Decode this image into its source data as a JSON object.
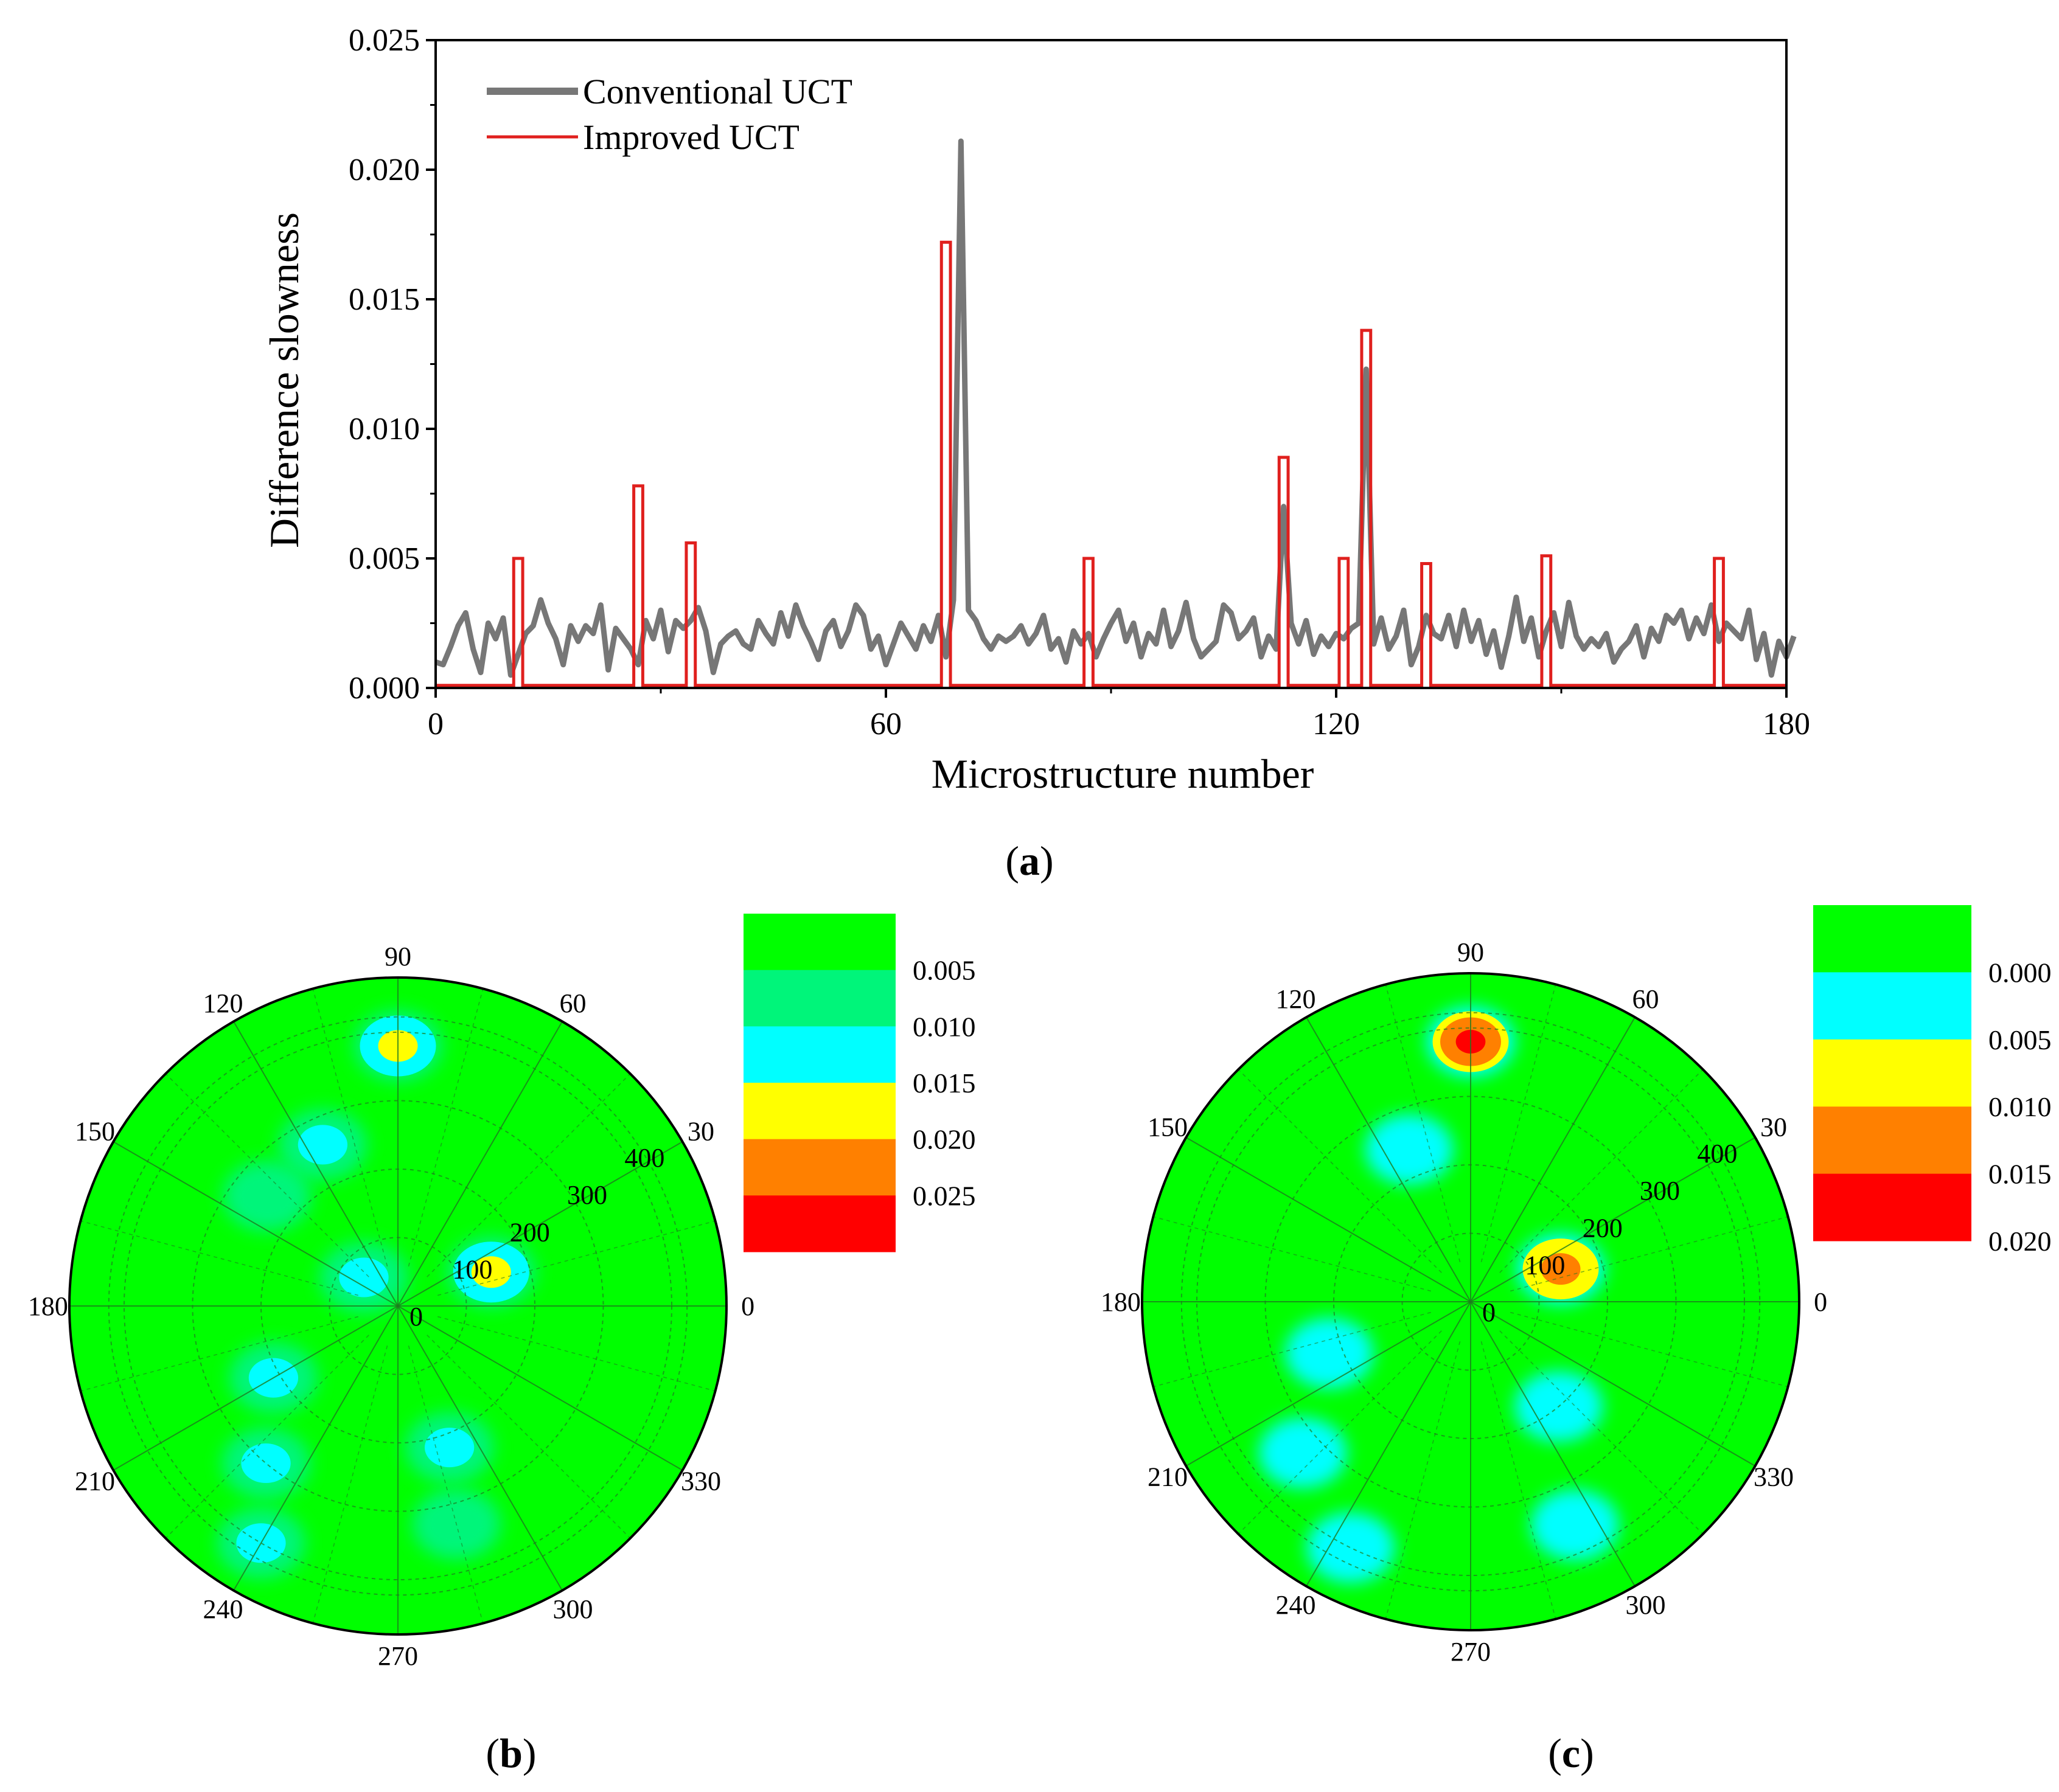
{
  "chart_data": [
    {
      "type": "line",
      "panel_label_open": "(",
      "panel_label": "a",
      "panel_label_close": ")",
      "xlabel": "Microstructure number",
      "ylabel": "Difference slowness",
      "xlim": [
        0,
        180
      ],
      "ylim": [
        0,
        0.025
      ],
      "xticks": [
        "0",
        "60",
        "120",
        "180"
      ],
      "yticks": [
        "0.000",
        "0.005",
        "0.010",
        "0.015",
        "0.020",
        "0.025"
      ],
      "legend_position": "top-left",
      "series": [
        {
          "name": "Conventional UCT",
          "color": "#777777",
          "values": [
            0.001,
            0.0009,
            0.0016,
            0.0024,
            0.0029,
            0.0015,
            0.0006,
            0.0025,
            0.0019,
            0.0027,
            0.0005,
            0.0013,
            0.0021,
            0.0024,
            0.0034,
            0.0025,
            0.0019,
            0.0009,
            0.0024,
            0.0018,
            0.0024,
            0.0021,
            0.0032,
            0.0007,
            0.0023,
            0.0019,
            0.0015,
            0.0009,
            0.0026,
            0.0019,
            0.003,
            0.0014,
            0.0026,
            0.0023,
            0.0026,
            0.0031,
            0.0022,
            0.0006,
            0.0017,
            0.002,
            0.0022,
            0.0017,
            0.0015,
            0.0026,
            0.0021,
            0.0017,
            0.0029,
            0.002,
            0.0032,
            0.0024,
            0.0018,
            0.0011,
            0.0022,
            0.0026,
            0.0016,
            0.0022,
            0.0032,
            0.0028,
            0.0015,
            0.002,
            0.0009,
            0.0017,
            0.0025,
            0.002,
            0.0015,
            0.0024,
            0.0018,
            0.0028,
            0.0012,
            0.0034,
            0.0211,
            0.003,
            0.0026,
            0.0019,
            0.0015,
            0.002,
            0.0018,
            0.002,
            0.0024,
            0.0017,
            0.0021,
            0.0028,
            0.0015,
            0.0019,
            0.001,
            0.0022,
            0.0017,
            0.0021,
            0.0012,
            0.0019,
            0.0025,
            0.003,
            0.0018,
            0.0025,
            0.0012,
            0.0021,
            0.0017,
            0.003,
            0.0016,
            0.0022,
            0.0033,
            0.0019,
            0.0012,
            0.0015,
            0.0018,
            0.0032,
            0.0029,
            0.0019,
            0.0022,
            0.0027,
            0.0012,
            0.002,
            0.0015,
            0.007,
            0.0025,
            0.0017,
            0.0026,
            0.0013,
            0.002,
            0.0016,
            0.0021,
            0.0019,
            0.0023,
            0.0025,
            0.0123,
            0.0017,
            0.0027,
            0.0015,
            0.002,
            0.003,
            0.0009,
            0.0016,
            0.0028,
            0.0021,
            0.0019,
            0.0028,
            0.0016,
            0.003,
            0.0018,
            0.0026,
            0.0013,
            0.0022,
            0.0008,
            0.002,
            0.0035,
            0.0018,
            0.0027,
            0.0012,
            0.0022,
            0.0029,
            0.0016,
            0.0033,
            0.002,
            0.0015,
            0.0019,
            0.0016,
            0.0021,
            0.001,
            0.0015,
            0.0018,
            0.0024,
            0.0012,
            0.0023,
            0.0018,
            0.0028,
            0.0025,
            0.003,
            0.0019,
            0.0027,
            0.0021,
            0.0032,
            0.0018,
            0.0025,
            0.0022,
            0.0019,
            0.003,
            0.0011,
            0.0021,
            0.0005,
            0.0018,
            0.0012,
            0.002
          ]
        },
        {
          "name": "Improved UCT",
          "color": "#e0201e",
          "baseline": 0.0001,
          "peaks": [
            {
              "x": 11,
              "y": 0.005
            },
            {
              "x": 27,
              "y": 0.0078
            },
            {
              "x": 34,
              "y": 0.0056
            },
            {
              "x": 68,
              "y": 0.0172
            },
            {
              "x": 87,
              "y": 0.005
            },
            {
              "x": 113,
              "y": 0.0089
            },
            {
              "x": 121,
              "y": 0.005
            },
            {
              "x": 124,
              "y": 0.0138
            },
            {
              "x": 132,
              "y": 0.0048
            },
            {
              "x": 148,
              "y": 0.0051
            },
            {
              "x": 171,
              "y": 0.005
            }
          ]
        }
      ]
    },
    {
      "type": "heatmap",
      "polar": true,
      "panel_label_open": "(",
      "panel_label": "b",
      "panel_label_close": ")",
      "angle_labels": [
        "0",
        "30",
        "60",
        "90",
        "120",
        "150",
        "180",
        "210",
        "240",
        "270",
        "300",
        "330"
      ],
      "radial_labels": [
        "0",
        "100",
        "200",
        "300",
        "400"
      ],
      "colorbar": {
        "labels": [
          "0.005",
          "0.010",
          "0.015",
          "0.020",
          "0.025"
        ],
        "colors": [
          "#00ff00",
          "#00f57a",
          "#00ffff",
          "#ffff00",
          "#ff8000",
          "#ff0000"
        ]
      },
      "hotspots": [
        {
          "r": 380,
          "theta": 90,
          "level": 3
        },
        {
          "r": 145,
          "theta": 20,
          "level": 3
        },
        {
          "r": 260,
          "theta": 115,
          "level": 2
        },
        {
          "r": 65,
          "theta": 140,
          "level": 2
        },
        {
          "r": 210,
          "theta": 210,
          "level": 2
        },
        {
          "r": 220,
          "theta": 290,
          "level": 2
        },
        {
          "r": 300,
          "theta": 230,
          "level": 2
        },
        {
          "r": 400,
          "theta": 240,
          "level": 2
        },
        {
          "r": 330,
          "theta": 285,
          "level": 1
        },
        {
          "r": 250,
          "theta": 140,
          "level": 1
        }
      ]
    },
    {
      "type": "heatmap",
      "polar": true,
      "panel_label_open": "(",
      "panel_label": "c",
      "panel_label_close": ")",
      "angle_labels": [
        "0",
        "30",
        "60",
        "90",
        "120",
        "150",
        "180",
        "210",
        "240",
        "270",
        "300",
        "330"
      ],
      "radial_labels": [
        "0",
        "100",
        "200",
        "300",
        "400"
      ],
      "colorbar": {
        "labels": [
          "0.000",
          "0.005",
          "0.010",
          "0.015",
          "0.020"
        ],
        "colors": [
          "#00ff00",
          "#00ffff",
          "#ffff00",
          "#ff8000",
          "#ff0000"
        ]
      },
      "hotspots": [
        {
          "r": 380,
          "theta": 90,
          "level": 4
        },
        {
          "r": 140,
          "theta": 20,
          "level": 3
        },
        {
          "r": 240,
          "theta": 112,
          "level": 1
        },
        {
          "r": 220,
          "theta": 200,
          "level": 1
        },
        {
          "r": 200,
          "theta": 310,
          "level": 1
        },
        {
          "r": 330,
          "theta": 222,
          "level": 1
        },
        {
          "r": 400,
          "theta": 244,
          "level": 1
        },
        {
          "r": 360,
          "theta": 295,
          "level": 1
        }
      ]
    }
  ]
}
